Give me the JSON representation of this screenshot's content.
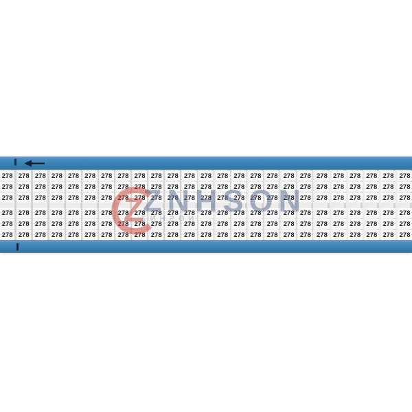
{
  "page": {
    "background": "#ffffff"
  },
  "card": {
    "description": "wire marker card",
    "marker_value": "278",
    "grid": {
      "rows": 6,
      "cols": 25,
      "cell_value": "278",
      "row_groups": [
        3,
        3
      ],
      "unique_values": [
        "278"
      ]
    },
    "arrow_direction": "left",
    "band_color": "#3b82b6",
    "band_color_dark": "#2f6f9f",
    "band_color_light": "#70a9d3",
    "label_text_color": "#1d1d21",
    "label_cell_color": "#f9f9f9"
  },
  "watermark": {
    "text": "ZNHSON",
    "reflection_text": "ZNHSON",
    "logo_letter": "Z",
    "logo_color": "#c9463a",
    "text_color": "rgba(99,114,145,0.55)"
  }
}
